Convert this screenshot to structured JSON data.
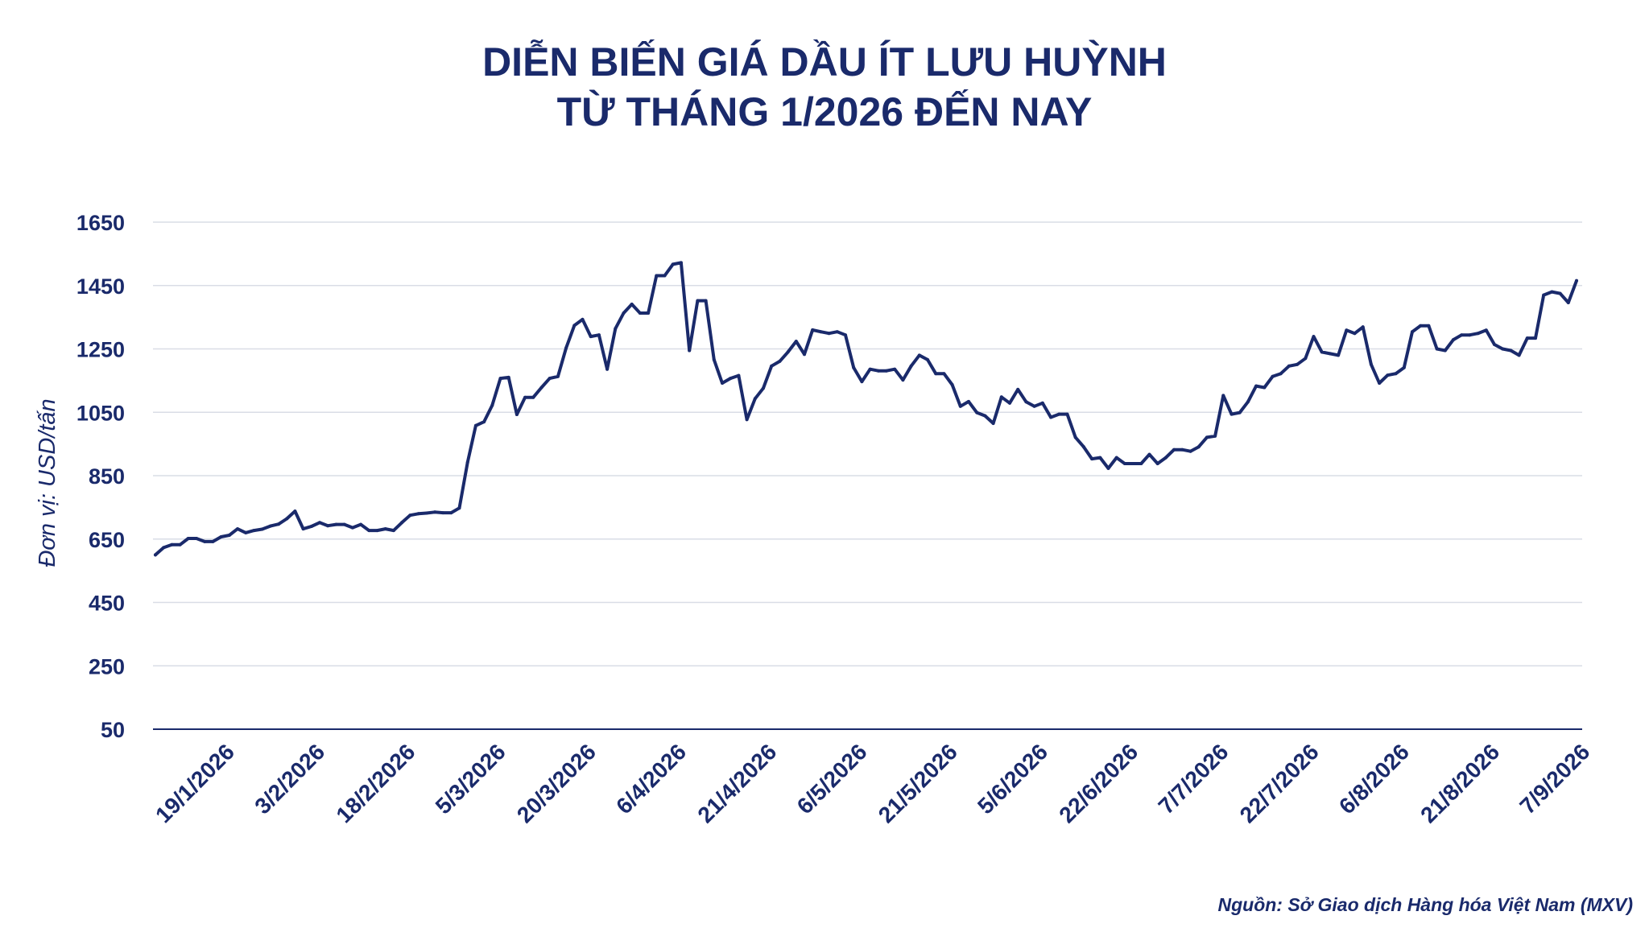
{
  "colors": {
    "line": "#1a2a6b",
    "text": "#1a2a6b",
    "grid": "#d9dde6",
    "axis": "#1a2a6b"
  },
  "chart_data": {
    "type": "line",
    "title": "DIỄN BIẾN GIÁ DẦU ÍT LƯU HUỲNH",
    "subtitle": "TỪ THÁNG 1/2026 ĐẾN NAY",
    "ylabel": "Đơn vị: USD/tấn",
    "xlabel": "",
    "ylim": [
      50,
      1650
    ],
    "yticks": [
      "1650",
      "1450",
      "1250",
      "1050",
      "850",
      "650",
      "450",
      "250",
      "50"
    ],
    "xticks": [
      "19/1/2026",
      "3/2/2026",
      "18/2/2026",
      "5/3/2026",
      "20/3/2026",
      "6/4/2026",
      "21/4/2026",
      "6/5/2026",
      "21/5/2026",
      "5/6/2026",
      "22/6/2026",
      "7/7/2026",
      "22/7/2026",
      "6/8/2026",
      "21/8/2026",
      "7/9/2026"
    ],
    "xtick_index": [
      9,
      20,
      31,
      42,
      53,
      64,
      75,
      86,
      97,
      108,
      119,
      130,
      141,
      152,
      163,
      174
    ],
    "grid": true,
    "series": [
      {
        "values": [
          600,
          623,
          632,
          632,
          652,
          652,
          642,
          642,
          657,
          662,
          682,
          670,
          677,
          681,
          691,
          697,
          714,
          738,
          682,
          690,
          702,
          692,
          696,
          696,
          686,
          696,
          677,
          677,
          682,
          677,
          702,
          725,
          730,
          732,
          735,
          733,
          733,
          748,
          892,
          1008,
          1020,
          1072,
          1157,
          1160,
          1043,
          1097,
          1097,
          1128,
          1157,
          1163,
          1253,
          1324,
          1343,
          1289,
          1294,
          1186,
          1314,
          1363,
          1391,
          1363,
          1363,
          1481,
          1481,
          1517,
          1522,
          1245,
          1402,
          1402,
          1216,
          1142,
          1157,
          1166,
          1027,
          1093,
          1126,
          1196,
          1211,
          1240,
          1274,
          1233,
          1310,
          1304,
          1299,
          1304,
          1294,
          1191,
          1147,
          1186,
          1181,
          1181,
          1186,
          1152,
          1196,
          1230,
          1216,
          1172,
          1172,
          1137,
          1069,
          1084,
          1049,
          1039,
          1015,
          1098,
          1079,
          1122,
          1083,
          1069,
          1079,
          1034,
          1044,
          1044,
          971,
          941,
          903,
          907,
          873,
          907,
          888,
          888,
          888,
          917,
          888,
          907,
          932,
          932,
          927,
          941,
          971,
          975,
          1103,
          1044,
          1049,
          1083,
          1133,
          1128,
          1163,
          1172,
          1196,
          1201,
          1220,
          1289,
          1240,
          1235,
          1230,
          1309,
          1299,
          1319,
          1201,
          1142,
          1167,
          1172,
          1191,
          1304,
          1323,
          1323,
          1250,
          1245,
          1279,
          1294,
          1294,
          1299,
          1309,
          1264,
          1250,
          1245,
          1230,
          1284,
          1284,
          1420,
          1430,
          1425,
          1396,
          1465
        ]
      }
    ]
  },
  "source_note": "Nguồn: Sở Giao dịch Hàng hóa Việt Nam (MXV)"
}
